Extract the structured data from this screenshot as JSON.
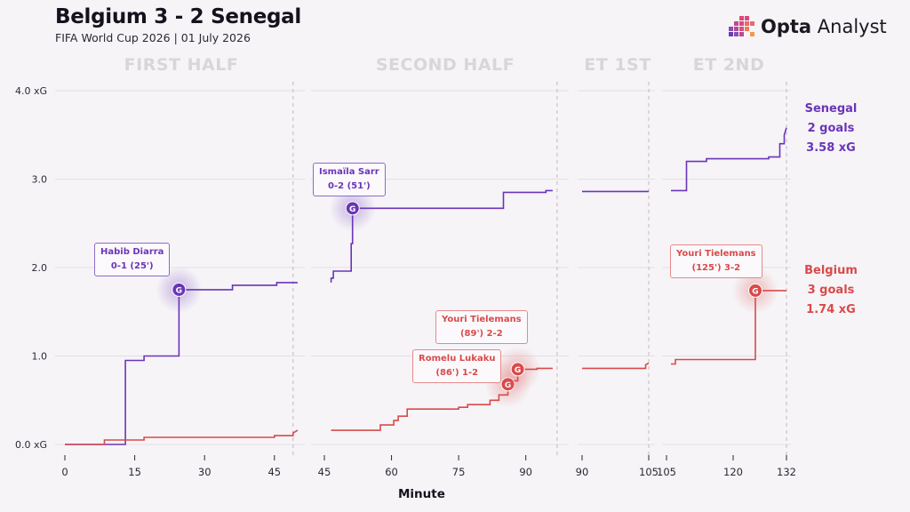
{
  "header": {
    "title": "Belgium 3 - 2 Senegal",
    "subtitle": "FIFA World Cup 2026 | 01 July 2026"
  },
  "logo": {
    "brand_bold": "Opta",
    "brand_light": "Analyst"
  },
  "colors": {
    "senegal": "#6a35b8",
    "belgium": "#d94a4a"
  },
  "chart_data": {
    "type": "line",
    "xlabel": "Minute",
    "ylim": [
      0,
      4
    ],
    "y_ticks": [
      {
        "value": 0,
        "label": "0.0 xG"
      },
      {
        "value": 1,
        "label": "1.0"
      },
      {
        "value": 2,
        "label": "2.0"
      },
      {
        "value": 3,
        "label": "3.0"
      },
      {
        "value": 4,
        "label": "4.0 xG"
      }
    ],
    "panels": [
      {
        "label": "FIRST HALF",
        "xlim": [
          0,
          50
        ],
        "end_line": 49,
        "ticks": [
          0,
          15,
          30,
          45
        ],
        "series": {
          "senegal": [
            [
              0,
              0
            ],
            [
              13,
              0
            ],
            [
              13,
              0.95
            ],
            [
              17,
              0.95
            ],
            [
              17,
              1.0
            ],
            [
              24.5,
              1.0
            ],
            [
              24.5,
              1.75
            ],
            [
              36,
              1.75
            ],
            [
              36,
              1.8
            ],
            [
              45.5,
              1.8
            ],
            [
              45.5,
              1.83
            ],
            [
              50,
              1.83
            ]
          ],
          "belgium": [
            [
              0,
              0
            ],
            [
              8.5,
              0
            ],
            [
              8.5,
              0.05
            ],
            [
              17,
              0.05
            ],
            [
              17,
              0.08
            ],
            [
              45,
              0.08
            ],
            [
              45,
              0.1
            ],
            [
              49,
              0.1
            ],
            [
              49,
              0.13
            ],
            [
              50,
              0.16
            ]
          ]
        }
      },
      {
        "label": "SECOND HALF",
        "xlim": [
          45,
          99
        ],
        "end_line": 97,
        "ticks": [
          45,
          60,
          75,
          90
        ],
        "series": {
          "senegal": [
            [
              46.5,
              1.83
            ],
            [
              46.5,
              1.88
            ],
            [
              47,
              1.88
            ],
            [
              47,
              1.96
            ],
            [
              51,
              1.96
            ],
            [
              51,
              2.27
            ],
            [
              51.3,
              2.27
            ],
            [
              51.3,
              2.67
            ],
            [
              85,
              2.67
            ],
            [
              85,
              2.85
            ],
            [
              94.5,
              2.85
            ],
            [
              94.5,
              2.87
            ],
            [
              96,
              2.87
            ]
          ],
          "belgium": [
            [
              46.5,
              0.16
            ],
            [
              57.5,
              0.16
            ],
            [
              57.5,
              0.22
            ],
            [
              60.5,
              0.22
            ],
            [
              60.5,
              0.27
            ],
            [
              61.5,
              0.27
            ],
            [
              61.5,
              0.32
            ],
            [
              63.5,
              0.32
            ],
            [
              63.5,
              0.4
            ],
            [
              75,
              0.4
            ],
            [
              75,
              0.42
            ],
            [
              77,
              0.42
            ],
            [
              77,
              0.45
            ],
            [
              82,
              0.45
            ],
            [
              82,
              0.5
            ],
            [
              84,
              0.5
            ],
            [
              84,
              0.56
            ],
            [
              86,
              0.56
            ],
            [
              86,
              0.68
            ],
            [
              87,
              0.68
            ],
            [
              87,
              0.72
            ],
            [
              88.2,
              0.72
            ],
            [
              88.2,
              0.85
            ],
            [
              92.5,
              0.85
            ],
            [
              92.5,
              0.86
            ],
            [
              96,
              0.86
            ]
          ]
        }
      },
      {
        "label": "ET 1ST",
        "xlim": [
          90,
          106
        ],
        "end_line": 105,
        "ticks": [
          90,
          105
        ],
        "series": {
          "senegal": [
            [
              90,
              2.86
            ],
            [
              105,
              2.86
            ]
          ],
          "belgium": [
            [
              90,
              0.86
            ],
            [
              104.3,
              0.86
            ],
            [
              104.3,
              0.9
            ],
            [
              105,
              0.92
            ]
          ]
        }
      },
      {
        "label": "ET 2ND",
        "xlim": [
          105,
          133
        ],
        "end_line": 132,
        "ticks": [
          105,
          120,
          132
        ],
        "series": {
          "senegal": [
            [
              106,
              2.87
            ],
            [
              109.5,
              2.87
            ],
            [
              109.5,
              3.2
            ],
            [
              114,
              3.2
            ],
            [
              114,
              3.23
            ],
            [
              128,
              3.23
            ],
            [
              128,
              3.25
            ],
            [
              130.5,
              3.25
            ],
            [
              130.5,
              3.4
            ],
            [
              131.5,
              3.4
            ],
            [
              131.5,
              3.5
            ],
            [
              132,
              3.58
            ]
          ],
          "belgium": [
            [
              106,
              0.91
            ],
            [
              107,
              0.91
            ],
            [
              107,
              0.96
            ],
            [
              125,
              0.96
            ],
            [
              125,
              1.74
            ],
            [
              132,
              1.74
            ]
          ]
        }
      }
    ],
    "goals": [
      {
        "team": "senegal",
        "panel": 0,
        "minute": 24.5,
        "xg": 1.75,
        "label": "G",
        "callout": [
          "Habib Diarra",
          "0-1 (25')"
        ]
      },
      {
        "team": "senegal",
        "panel": 1,
        "minute": 51.3,
        "xg": 2.67,
        "label": "G",
        "callout": [
          "Ismaïla Sarr",
          "0-2 (51')"
        ]
      },
      {
        "team": "belgium",
        "panel": 1,
        "minute": 86,
        "xg": 0.68,
        "label": "G",
        "callout": [
          "Romelu Lukaku",
          "(86') 1-2"
        ]
      },
      {
        "team": "belgium",
        "panel": 1,
        "minute": 88.2,
        "xg": 0.85,
        "label": "G",
        "callout": [
          "Youri Tielemans",
          "(89') 2-2"
        ]
      },
      {
        "team": "belgium",
        "panel": 3,
        "minute": 125,
        "xg": 1.74,
        "label": "G",
        "callout": [
          "Youri Tielemans",
          "(125') 3-2"
        ]
      }
    ],
    "totals": {
      "senegal": {
        "name": "Senegal",
        "goals": "2 goals",
        "xg": "3.58 xG"
      },
      "belgium": {
        "name": "Belgium",
        "goals": "3 goals",
        "xg": "1.74 xG"
      }
    }
  }
}
